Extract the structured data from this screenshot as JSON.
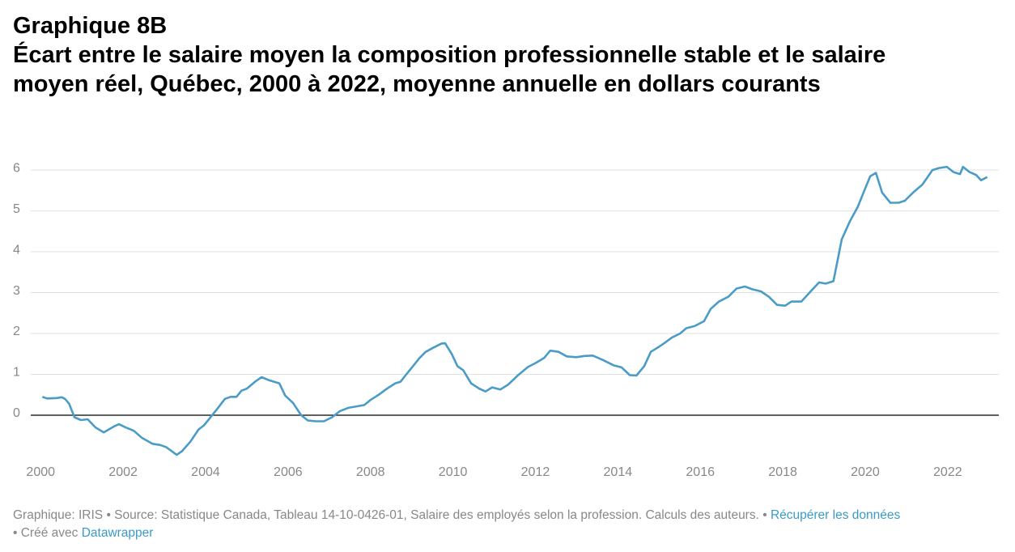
{
  "chart_data": {
    "type": "line",
    "title": "Graphique 8B",
    "subtitle": "Écart entre le salaire moyen la composition professionnelle stable et le salaire moyen réel, Québec, 2000 à 2022, moyenne annuelle en dollars courants",
    "x": [
      2000.04,
      2000.16,
      2000.39,
      2000.51,
      2000.59,
      2000.69,
      2000.82,
      2000.98,
      2001.14,
      2001.33,
      2001.53,
      2001.77,
      2001.9,
      2002.06,
      2002.26,
      2002.45,
      2002.71,
      2002.9,
      2003.04,
      2003.18,
      2003.3,
      2003.43,
      2003.63,
      2003.83,
      2003.96,
      2004.12,
      2004.28,
      2004.47,
      2004.61,
      2004.75,
      2004.87,
      2005.0,
      2005.2,
      2005.36,
      2005.53,
      2005.79,
      2005.93,
      2006.12,
      2006.32,
      2006.48,
      2006.67,
      2006.87,
      2007.07,
      2007.26,
      2007.46,
      2007.69,
      2007.85,
      2008.01,
      2008.2,
      2008.4,
      2008.6,
      2008.73,
      2008.87,
      2009.03,
      2009.19,
      2009.34,
      2009.52,
      2009.72,
      2009.81,
      2009.97,
      2010.11,
      2010.25,
      2010.44,
      2010.64,
      2010.79,
      2010.95,
      2011.15,
      2011.34,
      2011.58,
      2011.82,
      2012.01,
      2012.21,
      2012.36,
      2012.56,
      2012.76,
      2012.99,
      2013.19,
      2013.39,
      2013.64,
      2013.9,
      2014.09,
      2014.29,
      2014.45,
      2014.64,
      2014.8,
      2014.96,
      2015.11,
      2015.31,
      2015.51,
      2015.66,
      2015.86,
      2016.09,
      2016.25,
      2016.45,
      2016.68,
      2016.88,
      2017.08,
      2017.27,
      2017.47,
      2017.66,
      2017.86,
      2018.06,
      2018.21,
      2018.45,
      2018.65,
      2018.88,
      2019.04,
      2019.23,
      2019.43,
      2019.63,
      2019.82,
      2019.98,
      2020.12,
      2020.26,
      2020.41,
      2020.61,
      2020.81,
      2020.96,
      2021.16,
      2021.39,
      2021.63,
      2021.79,
      2021.98,
      2022.14,
      2022.3,
      2022.37,
      2022.53,
      2022.69,
      2022.81,
      2022.96
    ],
    "series": [
      {
        "color": "#4a9cc7",
        "values": [
          0.45,
          0.41,
          0.42,
          0.44,
          0.4,
          0.28,
          -0.05,
          -0.12,
          -0.1,
          -0.3,
          -0.42,
          -0.28,
          -0.22,
          -0.3,
          -0.38,
          -0.55,
          -0.7,
          -0.73,
          -0.78,
          -0.88,
          -0.97,
          -0.88,
          -0.65,
          -0.35,
          -0.25,
          -0.05,
          0.15,
          0.4,
          0.45,
          0.45,
          0.6,
          0.65,
          0.82,
          0.93,
          0.86,
          0.78,
          0.48,
          0.3,
          0.0,
          -0.13,
          -0.15,
          -0.15,
          -0.05,
          0.1,
          0.18,
          0.22,
          0.25,
          0.38,
          0.5,
          0.65,
          0.78,
          0.82,
          1.0,
          1.2,
          1.4,
          1.55,
          1.65,
          1.75,
          1.76,
          1.5,
          1.2,
          1.1,
          0.78,
          0.65,
          0.58,
          0.68,
          0.63,
          0.75,
          0.98,
          1.18,
          1.28,
          1.4,
          1.58,
          1.55,
          1.44,
          1.42,
          1.45,
          1.46,
          1.35,
          1.22,
          1.17,
          0.98,
          0.97,
          1.2,
          1.55,
          1.65,
          1.75,
          1.9,
          2.0,
          2.13,
          2.18,
          2.3,
          2.6,
          2.78,
          2.9,
          3.1,
          3.15,
          3.08,
          3.03,
          2.9,
          2.7,
          2.68,
          2.78,
          2.78,
          3.0,
          3.25,
          3.22,
          3.28,
          4.3,
          4.75,
          5.1,
          5.5,
          5.85,
          5.93,
          5.45,
          5.2,
          5.2,
          5.25,
          5.45,
          5.65,
          6.0,
          6.05,
          6.08,
          5.95,
          5.9,
          6.08,
          5.95,
          5.88,
          5.75,
          5.83
        ]
      }
    ],
    "xlim": [
      1999.76,
      2023.24
    ],
    "xticks": [
      2000,
      2002,
      2004,
      2006,
      2008,
      2010,
      2012,
      2014,
      2016,
      2018,
      2020,
      2022
    ],
    "ylim": [
      -1.1,
      6.2
    ],
    "yticks": [
      0,
      1,
      2,
      3,
      4,
      5,
      6
    ],
    "grid": true,
    "footer": {
      "text": "Graphique: IRIS • Source: Statistique Canada, Tableau 14-10-0426-01, Salaire des employés selon la profession. Calculs des auteurs. •",
      "link": "Récupérer les données",
      "created": "• Créé avec",
      "tool": "Datawrapper"
    }
  }
}
